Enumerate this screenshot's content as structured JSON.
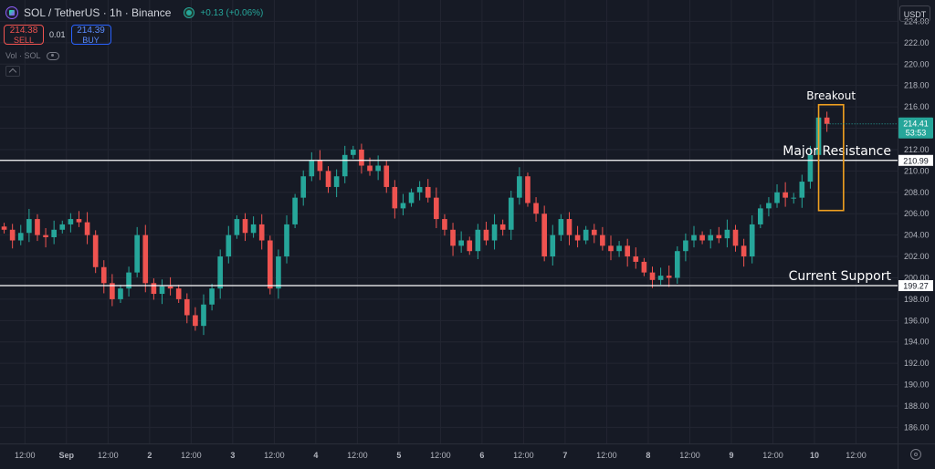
{
  "header": {
    "symbol": "SOL / TetherUS · 1h · Binance",
    "change": "+0.13 (+0.06%)"
  },
  "trade": {
    "sell_price": "214.38",
    "sell_label": "SELL",
    "spread": "0.01",
    "buy_price": "214.39",
    "buy_label": "BUY"
  },
  "indicator": {
    "label": "Vol · SOL"
  },
  "currency": "USDT",
  "colors": {
    "up": "#26a69a",
    "down": "#ef5350",
    "background": "#161a25",
    "grid": "#232632",
    "highlight": "#f0a020"
  },
  "chart_data": {
    "type": "candlestick",
    "ylim": [
      184.5,
      226
    ],
    "xlim": [
      0,
      108
    ],
    "y_ticks": [
      "186.00",
      "188.00",
      "190.00",
      "192.00",
      "194.00",
      "196.00",
      "198.00",
      "200.00",
      "202.00",
      "204.00",
      "206.00",
      "208.00",
      "210.00",
      "212.00",
      "214.00",
      "216.00",
      "218.00",
      "220.00",
      "222.00",
      "224.00"
    ],
    "x_ticks": [
      {
        "label": "12:00",
        "x": 3
      },
      {
        "label": "Sep",
        "x": 8
      },
      {
        "label": "12:00",
        "x": 13
      },
      {
        "label": "2",
        "x": 18
      },
      {
        "label": "12:00",
        "x": 23
      },
      {
        "label": "3",
        "x": 28
      },
      {
        "label": "12:00",
        "x": 33
      },
      {
        "label": "4",
        "x": 38
      },
      {
        "label": "12:00",
        "x": 43
      },
      {
        "label": "5",
        "x": 48
      },
      {
        "label": "12:00",
        "x": 53
      },
      {
        "label": "6",
        "x": 58
      },
      {
        "label": "12:00",
        "x": 63
      },
      {
        "label": "7",
        "x": 68
      },
      {
        "label": "12:00",
        "x": 73
      },
      {
        "label": "8",
        "x": 78
      },
      {
        "label": "12:00",
        "x": 83
      },
      {
        "label": "9",
        "x": 88
      },
      {
        "label": "12:00",
        "x": 93
      },
      {
        "label": "10",
        "x": 98
      },
      {
        "label": "12:00",
        "x": 103
      }
    ],
    "closes": [
      204.5,
      203.5,
      204.2,
      205.5,
      204.0,
      203.8,
      204.5,
      205.0,
      205.5,
      205.2,
      204.0,
      201.0,
      199.5,
      198.0,
      199.0,
      200.5,
      204.0,
      199.5,
      198.5,
      199.2,
      199.0,
      198.0,
      196.5,
      195.5,
      197.5,
      199.0,
      202.0,
      204.0,
      205.5,
      204.2,
      205.0,
      203.5,
      199.0,
      202.0,
      205.0,
      207.5,
      209.5,
      211.0,
      210.0,
      208.5,
      209.5,
      211.5,
      212.0,
      210.5,
      210.0,
      210.5,
      208.5,
      206.5,
      207.0,
      208.0,
      208.5,
      207.5,
      205.5,
      204.5,
      203.0,
      203.5,
      202.5,
      204.5,
      203.5,
      205.0,
      204.5,
      207.5,
      209.5,
      207.0,
      206.0,
      202.0,
      204.0,
      205.5,
      204.0,
      203.5,
      204.5,
      204.0,
      203.0,
      202.5,
      203.0,
      202.0,
      201.5,
      200.5,
      199.8,
      200.2,
      200.0,
      202.5,
      203.5,
      204.0,
      203.5,
      204.0,
      203.7,
      204.5,
      203.0,
      202.0,
      205.0,
      206.5,
      207.0,
      208.0,
      207.5,
      207.5,
      209.0,
      211.5,
      215.0,
      214.41
    ],
    "levels": [
      {
        "name": "Major Resistance",
        "value": 210.99,
        "tag": "210.99"
      },
      {
        "name": "Current Support",
        "value": 199.27,
        "tag": "199.27"
      }
    ],
    "current_price": {
      "value": 214.41,
      "label": "214.41",
      "countdown": "53:53"
    },
    "annotation": {
      "text": "Breakout",
      "x_from": 98.5,
      "x_to": 101.5,
      "y_from": 206.3,
      "y_to": 216.2
    }
  }
}
